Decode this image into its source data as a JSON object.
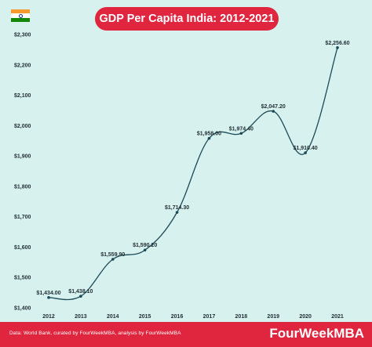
{
  "header": {
    "title": "GDP Per Capita India: 2012-2021",
    "flag_colors": [
      "#f59a2e",
      "#ffffff",
      "#138808"
    ]
  },
  "footer": {
    "source": "Data: World Bank, curated by FourWeekMBA, analysis by FourWeekMBA",
    "brand": "FourWeekMBA"
  },
  "colors": {
    "accent": "#e0253f",
    "background": "#d7f1ee",
    "line": "#1c4a56"
  },
  "chart_data": {
    "type": "line",
    "title": "GDP Per Capita India: 2012-2021",
    "categories": [
      "2012",
      "2013",
      "2014",
      "2015",
      "2016",
      "2017",
      "2018",
      "2019",
      "2020",
      "2021"
    ],
    "values": [
      1434.0,
      1438.1,
      1559.9,
      1590.2,
      1714.3,
      1958.0,
      1974.4,
      2047.2,
      1910.4,
      2256.6
    ],
    "data_labels": [
      "$1,434.00",
      "$1,438.10",
      "$1,559.90",
      "$1,590.20",
      "$1,714.30",
      "$1,958.00",
      "$1,974.40",
      "$2,047.20",
      "$1,910.40",
      "$2,256.60"
    ],
    "y_ticks": [
      1400,
      1500,
      1600,
      1700,
      1800,
      1900,
      2000,
      2100,
      2200,
      2300
    ],
    "y_tick_labels": [
      "$1,400",
      "$1,500",
      "$1,600",
      "$1,700",
      "$1,800",
      "$1,900",
      "$2,000",
      "$2,100",
      "$2,200",
      "$2,300"
    ],
    "ylim": [
      1400,
      2300
    ],
    "grid": false,
    "legend": "none"
  }
}
